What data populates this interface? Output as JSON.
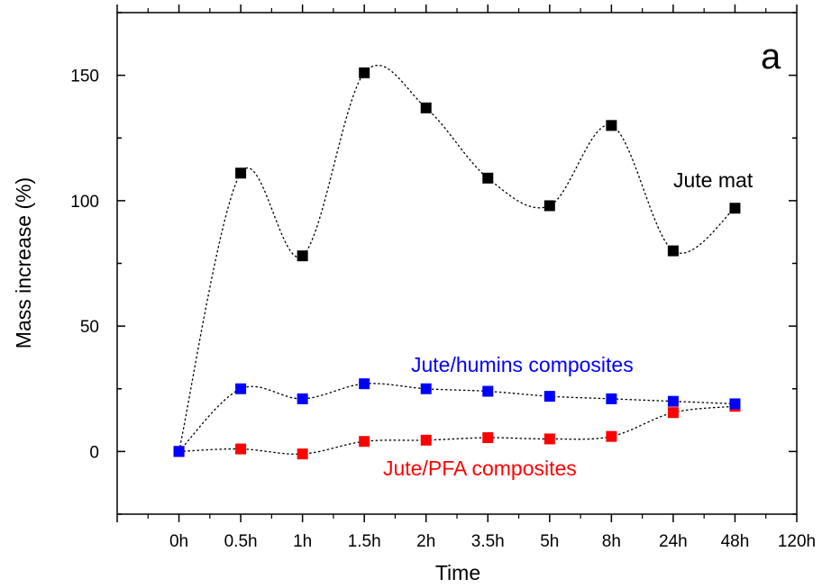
{
  "chart_data": {
    "type": "scatter",
    "xlabel": "Time",
    "ylabel": "Mass increase (%)",
    "panel_label": "a",
    "categories": [
      "",
      "0h",
      "0.5h",
      "1h",
      "1.5h",
      "2h",
      "3.5h",
      "5h",
      "8h",
      "24h",
      "48h",
      "120h"
    ],
    "ylim": [
      -25,
      175
    ],
    "yticks": [
      0,
      50,
      100,
      150
    ],
    "series": [
      {
        "name": "Jute mat",
        "color": "#000000",
        "values": [
          null,
          0,
          111,
          78,
          151,
          137,
          109,
          98,
          130,
          80,
          97,
          null
        ]
      },
      {
        "name": "Jute/humins composites",
        "color": "#0000ff",
        "values": [
          null,
          0,
          25,
          21,
          27,
          25,
          24,
          22,
          21,
          20,
          19,
          null
        ]
      },
      {
        "name": "Jute/PFA composites",
        "color": "#ff0000",
        "values": [
          null,
          0,
          1,
          -1,
          4,
          4.5,
          5.5,
          5,
          6,
          15.5,
          18,
          null
        ]
      }
    ]
  }
}
